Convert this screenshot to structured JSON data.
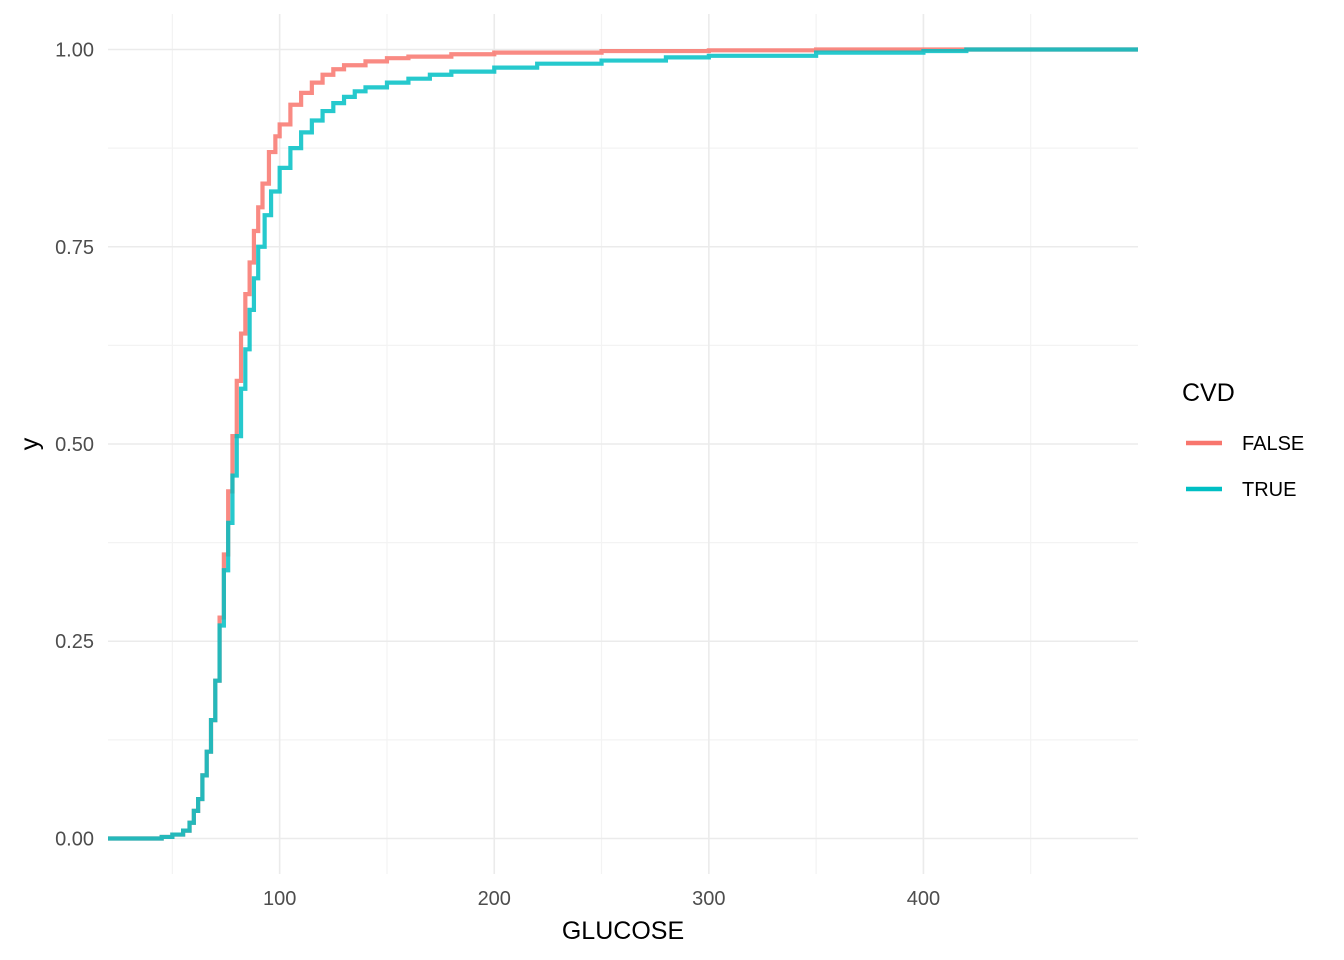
{
  "chart_data": {
    "type": "line",
    "subtype": "ecdf-step",
    "title": "",
    "xlabel": "GLUCOSE",
    "ylabel": "y",
    "xlim": [
      20,
      500
    ],
    "ylim": [
      -0.045,
      1.045
    ],
    "x_ticks": [
      100,
      200,
      300,
      400
    ],
    "x_tick_labels": [
      "100",
      "200",
      "300",
      "400"
    ],
    "y_ticks": [
      0,
      0.25,
      0.5,
      0.75,
      1.0
    ],
    "y_tick_labels": [
      "0.00",
      "0.25",
      "0.50",
      "0.75",
      "1.00"
    ],
    "grid": true,
    "legend": {
      "title": "CVD",
      "position": "right"
    },
    "series": [
      {
        "name": "FALSE",
        "color": "#F8766D",
        "points": [
          [
            20,
            0
          ],
          [
            40,
            0
          ],
          [
            45,
            0.002
          ],
          [
            50,
            0.005
          ],
          [
            55,
            0.01
          ],
          [
            58,
            0.02
          ],
          [
            60,
            0.035
          ],
          [
            62,
            0.05
          ],
          [
            64,
            0.08
          ],
          [
            66,
            0.11
          ],
          [
            68,
            0.15
          ],
          [
            70,
            0.2
          ],
          [
            72,
            0.28
          ],
          [
            74,
            0.36
          ],
          [
            76,
            0.44
          ],
          [
            78,
            0.51
          ],
          [
            80,
            0.58
          ],
          [
            82,
            0.64
          ],
          [
            84,
            0.69
          ],
          [
            86,
            0.73
          ],
          [
            88,
            0.77
          ],
          [
            90,
            0.8
          ],
          [
            92,
            0.83
          ],
          [
            95,
            0.87
          ],
          [
            98,
            0.89
          ],
          [
            100,
            0.905
          ],
          [
            105,
            0.93
          ],
          [
            110,
            0.945
          ],
          [
            115,
            0.958
          ],
          [
            120,
            0.968
          ],
          [
            125,
            0.975
          ],
          [
            130,
            0.98
          ],
          [
            140,
            0.985
          ],
          [
            150,
            0.989
          ],
          [
            160,
            0.991
          ],
          [
            180,
            0.994
          ],
          [
            200,
            0.996
          ],
          [
            250,
            0.998
          ],
          [
            300,
            0.999
          ],
          [
            350,
            1.0
          ],
          [
            500,
            1.0
          ]
        ]
      },
      {
        "name": "TRUE",
        "color": "#00BFC4",
        "points": [
          [
            20,
            0
          ],
          [
            40,
            0
          ],
          [
            45,
            0.002
          ],
          [
            50,
            0.005
          ],
          [
            55,
            0.01
          ],
          [
            58,
            0.02
          ],
          [
            60,
            0.035
          ],
          [
            62,
            0.05
          ],
          [
            64,
            0.08
          ],
          [
            66,
            0.11
          ],
          [
            68,
            0.15
          ],
          [
            70,
            0.2
          ],
          [
            72,
            0.27
          ],
          [
            74,
            0.34
          ],
          [
            76,
            0.4
          ],
          [
            78,
            0.46
          ],
          [
            80,
            0.51
          ],
          [
            82,
            0.57
          ],
          [
            84,
            0.62
          ],
          [
            86,
            0.67
          ],
          [
            88,
            0.71
          ],
          [
            90,
            0.75
          ],
          [
            93,
            0.79
          ],
          [
            96,
            0.82
          ],
          [
            100,
            0.85
          ],
          [
            105,
            0.875
          ],
          [
            110,
            0.895
          ],
          [
            115,
            0.91
          ],
          [
            120,
            0.922
          ],
          [
            125,
            0.932
          ],
          [
            130,
            0.94
          ],
          [
            135,
            0.947
          ],
          [
            140,
            0.952
          ],
          [
            150,
            0.958
          ],
          [
            160,
            0.963
          ],
          [
            170,
            0.968
          ],
          [
            180,
            0.972
          ],
          [
            200,
            0.977
          ],
          [
            220,
            0.982
          ],
          [
            250,
            0.986
          ],
          [
            280,
            0.99
          ],
          [
            300,
            0.992
          ],
          [
            350,
            0.996
          ],
          [
            400,
            0.998
          ],
          [
            420,
            1.0
          ],
          [
            500,
            1.0
          ]
        ]
      }
    ]
  }
}
